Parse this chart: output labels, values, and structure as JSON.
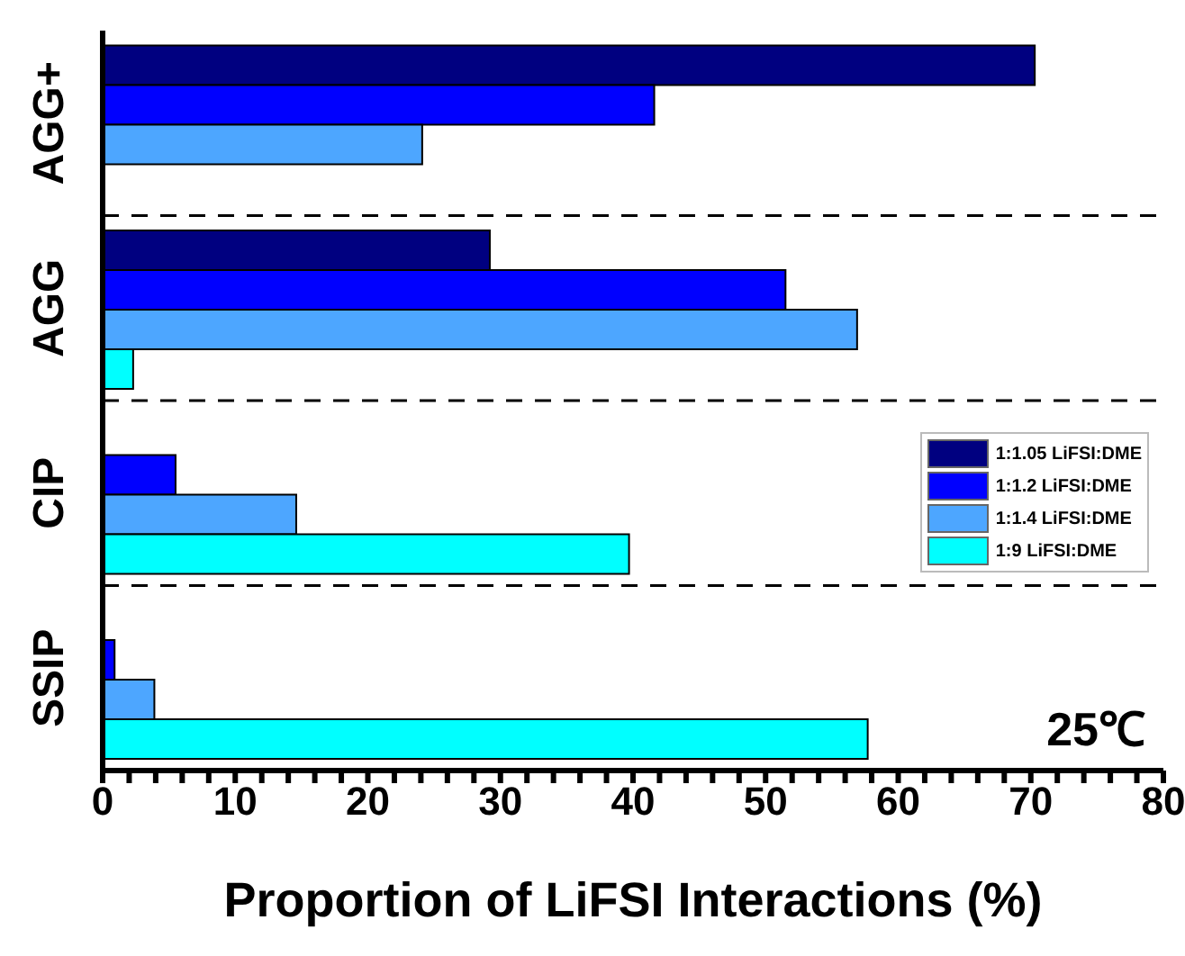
{
  "chart_data": {
    "type": "bar",
    "orientation": "horizontal",
    "xlabel": "Proportion of LiFSI Interactions (%)",
    "categories": [
      "AGG+",
      "AGG",
      "CIP",
      "SSIP"
    ],
    "series": [
      {
        "name": "1:1.05 LiFSI:DME",
        "color": "#000080",
        "values": [
          70.3,
          29.2,
          0,
          0
        ]
      },
      {
        "name": "1:1.2 LiFSI:DME",
        "color": "#0000ff",
        "values": [
          41.6,
          51.5,
          5.5,
          0.9
        ]
      },
      {
        "name": "1:1.4 LiFSI:DME",
        "color": "#4da6ff",
        "values": [
          24.1,
          56.9,
          14.6,
          3.9
        ]
      },
      {
        "name": "1:9 LiFSI:DME",
        "color": "#00ffff",
        "values": [
          0,
          2.3,
          39.7,
          57.7
        ]
      }
    ],
    "xlim": [
      0,
      80
    ],
    "xticks": [
      0,
      {
        "value": 2,
        "label": null
      },
      {
        "value": 4,
        "label": null
      },
      {
        "value": 6,
        "label": null
      },
      {
        "value": 8,
        "label": null
      },
      10,
      {
        "value": 12,
        "label": null
      },
      {
        "value": 14,
        "label": null
      },
      {
        "value": 16,
        "label": null
      },
      {
        "value": 18,
        "label": null
      },
      20,
      {
        "value": 22,
        "label": null
      },
      {
        "value": 24,
        "label": null
      },
      {
        "value": 26,
        "label": null
      },
      {
        "value": 28,
        "label": null
      },
      30,
      {
        "value": 32,
        "label": null
      },
      {
        "value": 34,
        "label": null
      },
      {
        "value": 36,
        "label": null
      },
      {
        "value": 38,
        "label": null
      },
      40,
      {
        "value": 42,
        "label": null
      },
      {
        "value": 44,
        "label": null
      },
      {
        "value": 46,
        "label": null
      },
      {
        "value": 48,
        "label": null
      },
      50,
      {
        "value": 52,
        "label": null
      },
      {
        "value": 54,
        "label": null
      },
      {
        "value": 56,
        "label": null
      },
      {
        "value": 58,
        "label": null
      },
      60,
      {
        "value": 62,
        "label": null
      },
      {
        "value": 64,
        "label": null
      },
      {
        "value": 66,
        "label": null
      },
      {
        "value": 68,
        "label": null
      },
      70,
      {
        "value": 72,
        "label": null
      },
      {
        "value": 74,
        "label": null
      },
      {
        "value": 76,
        "label": null
      },
      {
        "value": 78,
        "label": null
      },
      80
    ],
    "grid": "y",
    "legend": "right",
    "annotations": [
      "25℃"
    ]
  }
}
